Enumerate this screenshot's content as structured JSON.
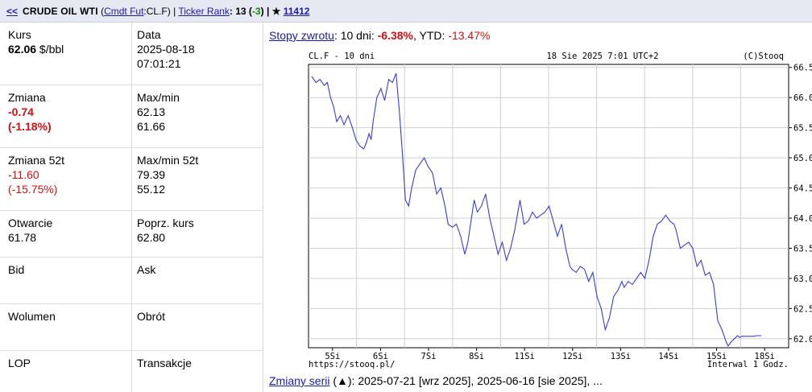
{
  "topbar": {
    "back": "<<",
    "name": "CRUDE OIL WTI",
    "paren_open": "(",
    "category_link": "Cmdt Fut",
    "symbol": ":CL.F)",
    "sep1": " | ",
    "rank_link": "Ticker Rank",
    "rank_value": ": 13 (",
    "rank_change": "-3",
    "rank_close": ") | ★ ",
    "star_count": "11412"
  },
  "quote": {
    "kurs_label": "Kurs",
    "kurs_value": "62.06",
    "kurs_unit": " $/bbl",
    "data_label": "Data",
    "date": "2025-08-18",
    "time": "07:01:21",
    "zmiana_label": "Zmiana",
    "zmiana_value": "-0.74",
    "zmiana_pct": "(-1.18%)",
    "maxmin_label": "Max/min",
    "max": "62.13",
    "min": "61.66",
    "zmiana52_label": "Zmiana 52t",
    "zmiana52_value": "-11.60",
    "zmiana52_pct": "(-15.75%)",
    "maxmin52_label": "Max/min 52t",
    "max52": "79.39",
    "min52": "55.12",
    "otwarcie_label": "Otwarcie",
    "otwarcie_value": "61.78",
    "poprz_label": "Poprz. kurs",
    "poprz_value": "62.80",
    "bid_label": "Bid",
    "ask_label": "Ask",
    "wolumen_label": "Wolumen",
    "obrot_label": "Obrót",
    "lop_label": "LOP",
    "transakcje_label": "Transakcje"
  },
  "returns": {
    "link": "Stopy zwrotu",
    "text1": ": 10 dni: ",
    "d10": "-6.38%",
    "text2": ", YTD: ",
    "ytd": "-13.47%"
  },
  "chart_header": {
    "left": "CL.F - 10 dni",
    "center": "18 Sie 2025 7:01 UTC+2",
    "right": "(C)Stooq"
  },
  "chart_footer": {
    "left": "https://stooq.pl/",
    "right": "Interwal 1 Godz."
  },
  "series_changes": {
    "link": "Zmiany serii",
    "text": " (▲): 2025-07-21 [wrz 2025], 2025-06-16 [sie 2025], ..."
  },
  "chart_data": {
    "type": "line",
    "title": "CL.F - 10 dni",
    "ylim": [
      61.85,
      66.55
    ],
    "yticks": [
      62.0,
      62.5,
      63.0,
      63.5,
      64.0,
      64.5,
      65.0,
      65.5,
      66.0,
      66.5
    ],
    "ytick_labels": [
      "62.0",
      "62.5",
      "63.0",
      "63.5",
      "64.0",
      "64.5",
      "65.0",
      "65.5",
      "66.0",
      "66.5"
    ],
    "xtick_labels": [
      "5Si",
      "6Si",
      "7Si",
      "8Si",
      "11Si",
      "12Si",
      "13Si",
      "14Si",
      "15Si",
      "18Si"
    ],
    "grid": true,
    "line_color": "#3b3bd6",
    "series": [
      {
        "x_index": [
          0,
          0.08,
          0.16,
          0.24,
          0.3,
          0.36,
          0.42,
          0.48,
          0.55,
          0.62,
          0.7,
          0.78,
          0.85,
          0.92,
          1.0,
          1.05,
          1.1,
          1.14,
          1.18,
          1.25,
          1.33,
          1.4,
          1.48,
          1.55,
          1.62,
          1.68,
          1.74,
          1.8,
          1.86,
          1.92,
          2.0,
          2.08,
          2.16,
          2.24,
          2.32,
          2.4,
          2.48,
          2.56,
          2.62,
          2.7,
          2.78,
          2.86,
          2.94,
          3.0,
          3.06,
          3.12,
          3.18,
          3.26,
          3.34,
          3.42,
          3.5,
          3.58,
          3.66,
          3.74,
          3.82,
          3.9,
          3.98,
          4.0,
          4.08,
          4.16,
          4.24,
          4.32,
          4.4,
          4.48,
          4.56,
          4.64,
          4.72,
          4.8,
          4.88,
          4.96,
          5.0,
          5.08,
          5.16,
          5.24,
          5.32,
          5.4,
          5.48,
          5.56,
          5.64,
          5.72,
          5.8,
          5.88,
          5.96,
          6.0,
          6.08,
          6.16,
          6.24,
          6.32,
          6.4,
          6.48,
          6.56,
          6.64,
          6.72,
          6.8,
          6.88,
          6.96,
          7.0,
          7.08,
          7.16,
          7.24,
          7.32,
          7.4,
          7.48,
          7.56,
          7.64,
          7.72,
          7.8,
          7.88,
          7.96,
          8.0,
          8.06,
          8.12,
          8.18,
          8.22,
          8.26,
          8.32,
          8.4,
          8.48,
          8.56,
          8.64
        ],
        "values": [
          66.35,
          66.25,
          66.3,
          66.2,
          66.25,
          66.0,
          65.85,
          65.6,
          65.7,
          65.55,
          65.7,
          65.5,
          65.3,
          65.2,
          65.15,
          65.25,
          65.4,
          65.3,
          65.6,
          66.0,
          66.15,
          65.95,
          66.3,
          66.25,
          66.4,
          65.8,
          65.1,
          64.3,
          64.2,
          64.5,
          64.8,
          64.9,
          65.0,
          64.85,
          64.75,
          64.4,
          64.5,
          64.2,
          63.9,
          63.85,
          63.9,
          63.7,
          63.4,
          63.6,
          63.95,
          64.3,
          64.1,
          64.2,
          64.4,
          64.0,
          63.7,
          63.4,
          63.6,
          63.3,
          63.5,
          63.8,
          64.2,
          64.3,
          63.9,
          63.95,
          64.1,
          64.0,
          64.05,
          64.1,
          64.2,
          63.95,
          63.7,
          63.9,
          63.5,
          63.2,
          63.15,
          63.1,
          63.2,
          63.15,
          62.95,
          63.1,
          62.7,
          62.5,
          62.15,
          62.35,
          62.7,
          62.8,
          62.95,
          62.85,
          62.95,
          62.9,
          63.0,
          63.1,
          63.0,
          63.3,
          63.7,
          63.9,
          63.95,
          64.05,
          63.95,
          63.9,
          63.8,
          63.5,
          63.55,
          63.6,
          63.5,
          63.2,
          63.3,
          63.05,
          63.1,
          62.9,
          62.3,
          62.15,
          61.95,
          61.88,
          61.95,
          62.0,
          62.05,
          62.02,
          62.04,
          62.04,
          62.04,
          62.04,
          62.05,
          62.05
        ]
      }
    ]
  }
}
